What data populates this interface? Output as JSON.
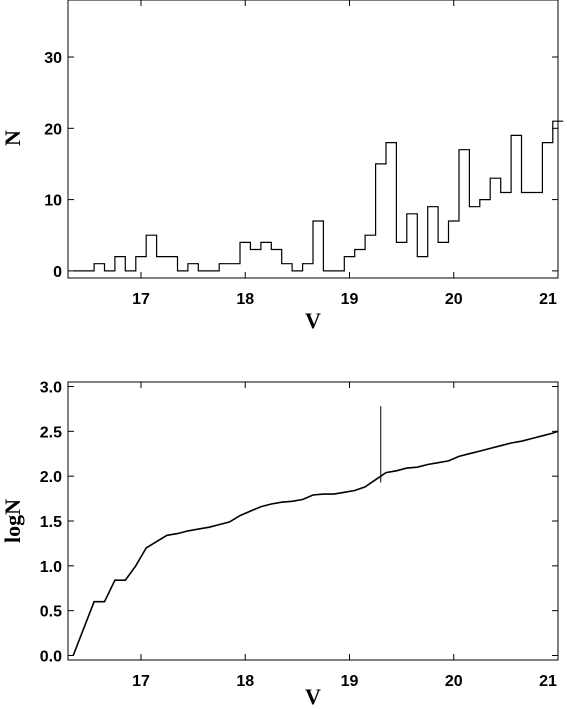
{
  "chart_data": [
    {
      "type": "histogram",
      "xlabel": "V",
      "ylabel": "N",
      "xlim": [
        16.3,
        21.0
      ],
      "ylim": [
        -1,
        38
      ],
      "xticks": [
        17,
        18,
        19,
        20,
        21
      ],
      "yticks": [
        0,
        10,
        20,
        30
      ],
      "bin_width": 0.1,
      "bins_start": [
        16.35,
        16.45,
        16.55,
        16.65,
        16.75,
        16.85,
        16.95,
        17.05,
        17.15,
        17.25,
        17.35,
        17.45,
        17.55,
        17.65,
        17.75,
        17.85,
        17.95,
        18.05,
        18.15,
        18.25,
        18.35,
        18.45,
        18.55,
        18.65,
        18.75,
        18.85,
        18.95,
        19.05,
        19.15,
        19.25,
        19.35,
        19.45,
        19.55,
        19.65,
        19.75,
        19.85,
        19.95,
        20.05,
        20.15,
        20.25,
        20.35,
        20.45,
        20.55,
        20.65,
        20.75,
        20.85,
        20.95
      ],
      "counts": [
        0,
        0,
        1,
        0,
        2,
        0,
        2,
        5,
        2,
        2,
        0,
        1,
        0,
        0,
        1,
        1,
        4,
        3,
        4,
        3,
        1,
        0,
        1,
        7,
        0,
        0,
        2,
        3,
        5,
        15,
        18,
        4,
        8,
        2,
        9,
        4,
        7,
        17,
        9,
        10,
        13,
        11,
        19,
        11,
        11,
        18,
        21
      ]
    },
    {
      "type": "line",
      "xlabel": "V",
      "ylabel": "logN",
      "xlim": [
        16.3,
        21.0
      ],
      "ylim": [
        -0.05,
        3.05
      ],
      "xticks": [
        17,
        18,
        19,
        20,
        21
      ],
      "yticks": [
        0.0,
        0.5,
        1.0,
        1.5,
        2.0,
        2.5,
        3.0
      ],
      "ytick_labels": [
        "0.0",
        "0.5",
        "1.0",
        "1.5",
        "2.0",
        "2.5",
        "3.0"
      ],
      "series": [
        {
          "x": [
            16.35,
            16.55,
            16.65,
            16.75,
            16.85,
            16.95,
            17.05,
            17.15,
            17.25,
            17.35,
            17.45,
            17.55,
            17.65,
            17.75,
            17.85,
            17.95,
            18.05,
            18.15,
            18.25,
            18.35,
            18.45,
            18.55,
            18.65,
            18.75,
            18.85,
            18.95,
            19.05,
            19.15,
            19.25,
            19.35,
            19.45,
            19.55,
            19.65,
            19.75,
            19.85,
            19.95,
            20.05,
            20.15,
            20.25,
            20.35,
            20.45,
            20.55,
            20.65,
            20.75,
            20.85,
            20.95,
            21.0
          ],
          "y": [
            0.0,
            0.6,
            0.6,
            0.84,
            0.84,
            1.0,
            1.2,
            1.27,
            1.34,
            1.36,
            1.39,
            1.41,
            1.43,
            1.46,
            1.49,
            1.56,
            1.61,
            1.66,
            1.69,
            1.71,
            1.72,
            1.74,
            1.79,
            1.8,
            1.8,
            1.82,
            1.84,
            1.88,
            1.96,
            2.04,
            2.06,
            2.09,
            2.1,
            2.13,
            2.15,
            2.17,
            2.22,
            2.25,
            2.28,
            2.31,
            2.34,
            2.37,
            2.39,
            2.42,
            2.45,
            2.48,
            2.5
          ]
        }
      ],
      "annotation_line": {
        "x": 19.3,
        "y_from": 1.93,
        "y_to": 2.78
      }
    }
  ]
}
